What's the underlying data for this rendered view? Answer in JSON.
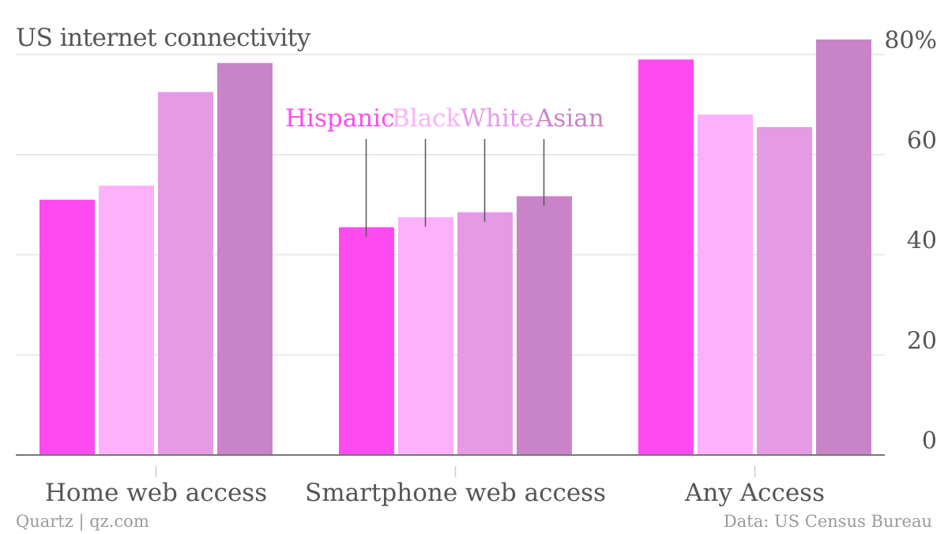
{
  "title": "US internet connectivity",
  "footer": {
    "left": "Quartz | qz.com",
    "right": "Data: US Census Bureau"
  },
  "colors": {
    "Hispanic": "#ff4af0",
    "Black": "#fcb1fa",
    "White": "#e59ae5",
    "Asian": "#c984c9",
    "axis": "#777777",
    "grid": "#e3e3e3",
    "text": "#555555"
  },
  "chart_data": {
    "type": "bar",
    "title": "US internet connectivity",
    "categories": [
      "Home web access",
      "Smartphone web access",
      "Any Access"
    ],
    "series": [
      {
        "name": "Hispanic",
        "values": [
          51,
          45.5,
          79
        ]
      },
      {
        "name": "Black",
        "values": [
          53.8,
          47.5,
          68
        ]
      },
      {
        "name": "White",
        "values": [
          72.5,
          48.5,
          65.5
        ]
      },
      {
        "name": "Asian",
        "values": [
          78.3,
          51.7,
          83
        ]
      }
    ],
    "ylim": [
      0,
      80
    ],
    "yticks": [
      0,
      20,
      40,
      60,
      80
    ],
    "ytick_labels": [
      "0",
      "20",
      "40",
      "60",
      "80%"
    ],
    "yaxis_side": "right",
    "grid": true,
    "legend_placement": "inline-top-center",
    "xlabel": "",
    "ylabel": ""
  }
}
